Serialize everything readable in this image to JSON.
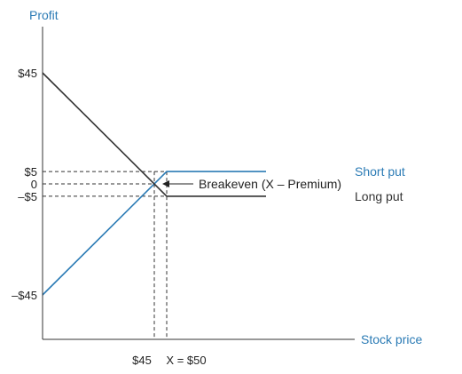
{
  "colors": {
    "short_put": "#2b7bb5",
    "long_put": "#333333",
    "axis": "#333333",
    "axis_label": "#2b7bb5",
    "text": "#222222"
  },
  "chart_data": {
    "type": "line",
    "ylabel": "Profit",
    "xlabel": "Stock price",
    "y_ticks": [
      {
        "value": 45,
        "label": "$45"
      },
      {
        "value": 5,
        "label": "$5"
      },
      {
        "value": 0,
        "label": "0"
      },
      {
        "value": -5,
        "label": "–$5"
      },
      {
        "value": -45,
        "label": "–$45"
      }
    ],
    "x_ticks": [
      {
        "value": 45,
        "label": "$45"
      },
      {
        "value": 50,
        "label": "X = $50"
      }
    ],
    "xlim": [
      0,
      90
    ],
    "ylim": [
      -60,
      65
    ],
    "series": [
      {
        "name": "Short put",
        "color": "#2b7bb5",
        "points": [
          [
            0,
            -45
          ],
          [
            50,
            5
          ],
          [
            90,
            5
          ]
        ]
      },
      {
        "name": "Long put",
        "color": "#333333",
        "points": [
          [
            0,
            45
          ],
          [
            50,
            -5
          ],
          [
            90,
            -5
          ]
        ]
      }
    ],
    "reference_lines": {
      "horizontal": [
        5,
        0,
        -5
      ],
      "vertical": [
        45,
        50
      ]
    },
    "annotation": {
      "text": "Breakeven (X – Premium)",
      "point": [
        45,
        0
      ]
    }
  }
}
